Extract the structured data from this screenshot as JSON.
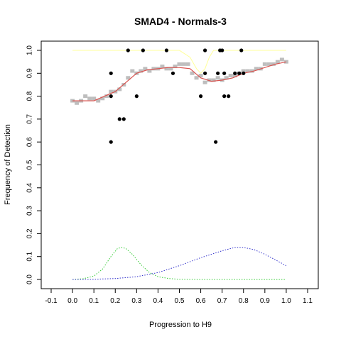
{
  "chart_data": {
    "type": "scatter",
    "title": "SMAD4 - Normals-3",
    "xlabel": "Progression to H9",
    "ylabel": "Frequency of Detection",
    "xlim": [
      -0.1,
      1.1
    ],
    "ylim": [
      0.0,
      1.0
    ],
    "xticks": [
      "-0.1",
      "0.0",
      "0.1",
      "0.2",
      "0.3",
      "0.4",
      "0.5",
      "0.6",
      "0.7",
      "0.8",
      "0.9",
      "1.0",
      "1.1"
    ],
    "yticks": [
      "0.0",
      "0.1",
      "0.2",
      "0.3",
      "0.4",
      "0.5",
      "0.6",
      "0.7",
      "0.8",
      "0.9",
      "1.0"
    ],
    "grid": false,
    "colors": {
      "observed": "#000000",
      "smoothed_points": "#bebebe",
      "fitted_curve": "#d9534f",
      "reference_line": "#ffff99",
      "density_1": "#33cc33",
      "density_2": "#3333cc"
    },
    "series": [
      {
        "role": "observed",
        "style": "points",
        "points": [
          [
            0.18,
            0.9
          ],
          [
            0.18,
            0.8
          ],
          [
            0.18,
            0.6
          ],
          [
            0.22,
            0.7
          ],
          [
            0.24,
            0.7
          ],
          [
            0.26,
            1.0
          ],
          [
            0.3,
            0.8
          ],
          [
            0.33,
            1.0
          ],
          [
            0.44,
            1.0
          ],
          [
            0.47,
            0.9
          ],
          [
            0.6,
            0.8
          ],
          [
            0.62,
            1.0
          ],
          [
            0.62,
            0.9
          ],
          [
            0.67,
            0.6
          ],
          [
            0.68,
            0.9
          ],
          [
            0.69,
            1.0
          ],
          [
            0.7,
            1.0
          ],
          [
            0.71,
            0.9
          ],
          [
            0.71,
            0.8
          ],
          [
            0.73,
            0.8
          ],
          [
            0.76,
            0.9
          ],
          [
            0.78,
            0.9
          ],
          [
            0.79,
            1.0
          ],
          [
            0.8,
            0.9
          ]
        ]
      },
      {
        "role": "smoothed_points",
        "style": "points",
        "points": [
          [
            0.0,
            0.78
          ],
          [
            0.02,
            0.77
          ],
          [
            0.04,
            0.78
          ],
          [
            0.06,
            0.8
          ],
          [
            0.08,
            0.79
          ],
          [
            0.1,
            0.79
          ],
          [
            0.12,
            0.78
          ],
          [
            0.14,
            0.79
          ],
          [
            0.16,
            0.8
          ],
          [
            0.18,
            0.82
          ],
          [
            0.2,
            0.82
          ],
          [
            0.22,
            0.83
          ],
          [
            0.24,
            0.85
          ],
          [
            0.26,
            0.88
          ],
          [
            0.28,
            0.91
          ],
          [
            0.3,
            0.9
          ],
          [
            0.32,
            0.91
          ],
          [
            0.34,
            0.92
          ],
          [
            0.36,
            0.91
          ],
          [
            0.38,
            0.92
          ],
          [
            0.4,
            0.92
          ],
          [
            0.42,
            0.93
          ],
          [
            0.44,
            0.92
          ],
          [
            0.46,
            0.92
          ],
          [
            0.48,
            0.93
          ],
          [
            0.5,
            0.94
          ],
          [
            0.52,
            0.94
          ],
          [
            0.54,
            0.94
          ],
          [
            0.56,
            0.9
          ],
          [
            0.58,
            0.88
          ],
          [
            0.6,
            0.89
          ],
          [
            0.62,
            0.86
          ],
          [
            0.64,
            0.87
          ],
          [
            0.66,
            0.87
          ],
          [
            0.68,
            0.88
          ],
          [
            0.7,
            0.87
          ],
          [
            0.72,
            0.88
          ],
          [
            0.74,
            0.89
          ],
          [
            0.76,
            0.89
          ],
          [
            0.78,
            0.9
          ],
          [
            0.8,
            0.91
          ],
          [
            0.82,
            0.91
          ],
          [
            0.84,
            0.91
          ],
          [
            0.86,
            0.92
          ],
          [
            0.88,
            0.92
          ],
          [
            0.9,
            0.94
          ],
          [
            0.92,
            0.94
          ],
          [
            0.94,
            0.94
          ],
          [
            0.96,
            0.95
          ],
          [
            0.98,
            0.96
          ],
          [
            1.0,
            0.95
          ]
        ]
      },
      {
        "role": "fitted_curve",
        "style": "line",
        "points": [
          [
            0.0,
            0.78
          ],
          [
            0.05,
            0.78
          ],
          [
            0.1,
            0.78
          ],
          [
            0.15,
            0.8
          ],
          [
            0.2,
            0.82
          ],
          [
            0.25,
            0.86
          ],
          [
            0.3,
            0.9
          ],
          [
            0.35,
            0.915
          ],
          [
            0.4,
            0.92
          ],
          [
            0.45,
            0.925
          ],
          [
            0.5,
            0.925
          ],
          [
            0.55,
            0.92
          ],
          [
            0.6,
            0.88
          ],
          [
            0.65,
            0.865
          ],
          [
            0.7,
            0.87
          ],
          [
            0.75,
            0.88
          ],
          [
            0.8,
            0.9
          ],
          [
            0.85,
            0.91
          ],
          [
            0.9,
            0.925
          ],
          [
            0.95,
            0.94
          ],
          [
            1.0,
            0.95
          ]
        ]
      },
      {
        "role": "reference_line",
        "style": "line",
        "points": [
          [
            0.0,
            1.0
          ],
          [
            0.5,
            1.0
          ],
          [
            0.55,
            0.97
          ],
          [
            0.58,
            0.92
          ],
          [
            0.6,
            0.9
          ],
          [
            0.62,
            0.92
          ],
          [
            0.64,
            0.97
          ],
          [
            0.66,
            1.0
          ],
          [
            1.0,
            1.0
          ]
        ]
      },
      {
        "role": "density_1",
        "style": "dotted",
        "points": [
          [
            0.0,
            0.0
          ],
          [
            0.05,
            0.003
          ],
          [
            0.1,
            0.015
          ],
          [
            0.14,
            0.045
          ],
          [
            0.18,
            0.1
          ],
          [
            0.21,
            0.135
          ],
          [
            0.23,
            0.14
          ],
          [
            0.25,
            0.135
          ],
          [
            0.28,
            0.11
          ],
          [
            0.32,
            0.065
          ],
          [
            0.36,
            0.03
          ],
          [
            0.4,
            0.012
          ],
          [
            0.45,
            0.004
          ],
          [
            0.5,
            0.001
          ],
          [
            0.6,
            0.0
          ],
          [
            0.8,
            0.0
          ],
          [
            1.0,
            0.0
          ]
        ]
      },
      {
        "role": "density_2",
        "style": "dotted",
        "points": [
          [
            0.0,
            0.0
          ],
          [
            0.1,
            0.001
          ],
          [
            0.2,
            0.004
          ],
          [
            0.3,
            0.012
          ],
          [
            0.4,
            0.03
          ],
          [
            0.5,
            0.06
          ],
          [
            0.6,
            0.095
          ],
          [
            0.7,
            0.125
          ],
          [
            0.76,
            0.14
          ],
          [
            0.8,
            0.14
          ],
          [
            0.85,
            0.13
          ],
          [
            0.9,
            0.11
          ],
          [
            0.95,
            0.085
          ],
          [
            1.0,
            0.06
          ]
        ]
      }
    ]
  }
}
